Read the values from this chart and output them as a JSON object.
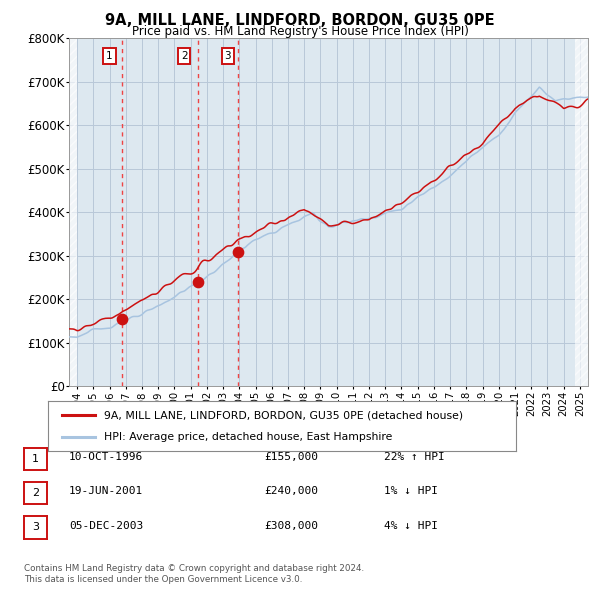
{
  "title": "9A, MILL LANE, LINDFORD, BORDON, GU35 0PE",
  "subtitle": "Price paid vs. HM Land Registry's House Price Index (HPI)",
  "legend_line1": "9A, MILL LANE, LINDFORD, BORDON, GU35 0PE (detached house)",
  "legend_line2": "HPI: Average price, detached house, East Hampshire",
  "sales": [
    {
      "label": "1",
      "date": "10-OCT-1996",
      "price": 155000,
      "pct": "22%",
      "dir": "↑"
    },
    {
      "label": "2",
      "date": "19-JUN-2001",
      "price": 240000,
      "pct": "1%",
      "dir": "↓"
    },
    {
      "label": "3",
      "date": "05-DEC-2003",
      "price": 308000,
      "pct": "4%",
      "dir": "↓"
    }
  ],
  "sale_years": [
    1996.79,
    2001.47,
    2003.92
  ],
  "sale_prices": [
    155000,
    240000,
    308000
  ],
  "footnote1": "Contains HM Land Registry data © Crown copyright and database right 2024.",
  "footnote2": "This data is licensed under the Open Government Licence v3.0.",
  "ylim": [
    0,
    800000
  ],
  "xlim_start": 1993.5,
  "xlim_end": 2025.5,
  "hpi_color": "#a8c4e0",
  "price_color": "#cc1111",
  "sale_label_color": "#cc1111",
  "vline_color": "#ee4444",
  "chart_bg": "#dde8f0",
  "background_color": "#ffffff",
  "grid_color": "#b8c8d8"
}
